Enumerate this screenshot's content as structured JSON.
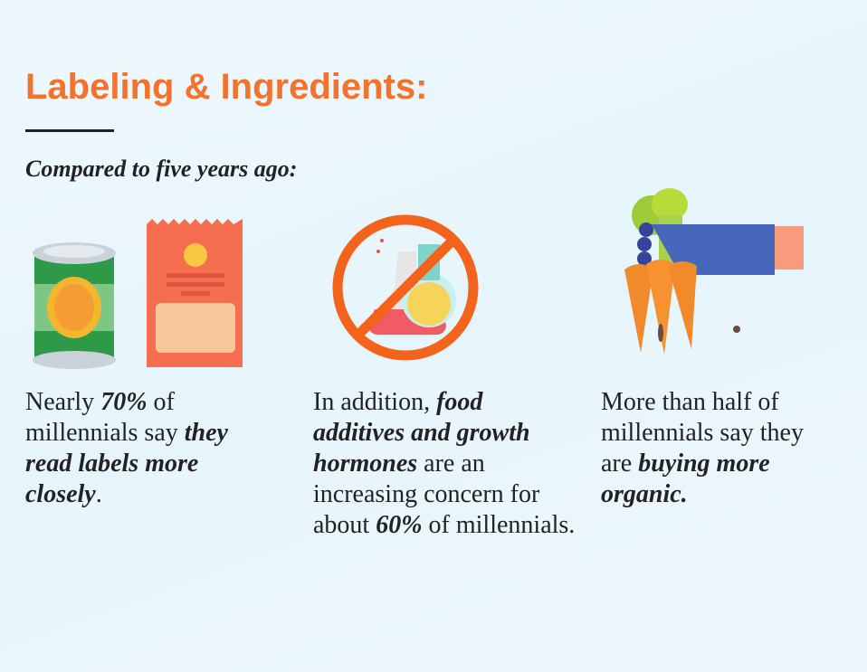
{
  "title": "Labeling & Ingredients:",
  "subtitle": "Compared to five years ago:",
  "columns": [
    {
      "segments": [
        {
          "t": "Nearly ",
          "b": false
        },
        {
          "t": "70%",
          "b": true
        },
        {
          "t": " of millennials say ",
          "b": false
        },
        {
          "t": "they read labels more closely",
          "b": true
        },
        {
          "t": ".",
          "b": false
        }
      ],
      "icon": "canned-food-and-package-icon"
    },
    {
      "segments": [
        {
          "t": "In addition, ",
          "b": false
        },
        {
          "t": "food additives and growth hormones",
          "b": true
        },
        {
          "t": " are an increasing concern for about ",
          "b": false
        },
        {
          "t": "60%",
          "b": true
        },
        {
          "t": " of millennials.",
          "b": false
        }
      ],
      "icon": "no-chemicals-icon"
    },
    {
      "segments": [
        {
          "t": "More than half of millennials say they are ",
          "b": false
        },
        {
          "t": "buying more organic.",
          "b": true
        }
      ],
      "icon": "hand-holding-carrots-icon"
    }
  ],
  "colors": {
    "accent": "#f2722e",
    "text": "#222222"
  }
}
